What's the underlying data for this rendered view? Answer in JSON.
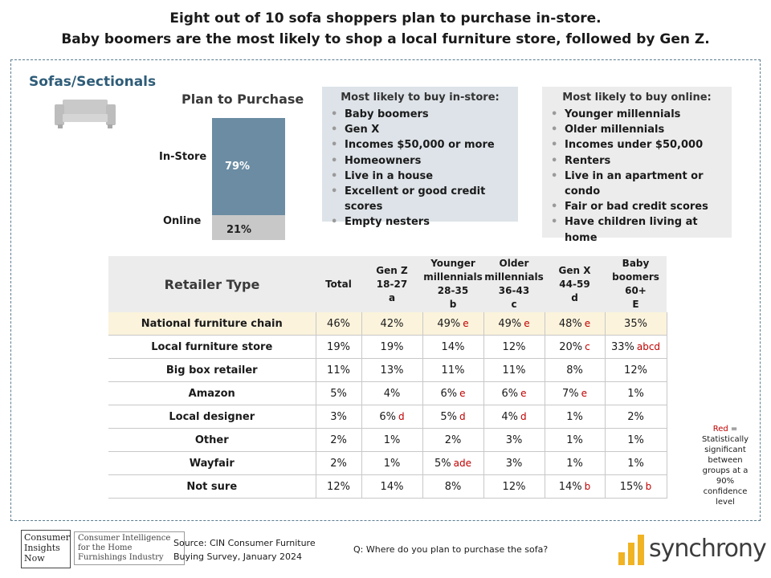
{
  "title": {
    "line1": "Eight out of 10 sofa shoppers plan to purchase in-store.",
    "line2": "Baby boomers are the most likely to shop a local furniture store, followed by Gen Z."
  },
  "section_title": "Sofas/Sectionals",
  "icons": {
    "sofa": "sofa-icon",
    "logo_mark": "synchrony-logo-icon"
  },
  "colors": {
    "instore_bar": "#6b8ca3",
    "online_bar": "#c8c8c8",
    "sig_red": "#c00000",
    "highlight": "#fbf3dc",
    "section": "#2e5c78"
  },
  "chart_data": [
    {
      "type": "bar",
      "title": "Plan to Purchase",
      "stacked": true,
      "categories": [
        "In-Store",
        "Online"
      ],
      "values": [
        79,
        21
      ],
      "labels": [
        "79%",
        "21%"
      ],
      "ylim": [
        0,
        100
      ]
    },
    {
      "type": "table",
      "title": "Retailer Type",
      "columns": [
        {
          "label": "Total",
          "lines": [
            "Total"
          ]
        },
        {
          "label": "Gen Z 18-27 a",
          "lines": [
            "Gen Z",
            "18-27",
            "a"
          ]
        },
        {
          "label": "Younger millennials 28-35 b",
          "lines": [
            "Younger",
            "millennials",
            "28-35",
            "b"
          ]
        },
        {
          "label": "Older millennials 36-43 c",
          "lines": [
            "Older",
            "millennials",
            "36-43",
            "c"
          ]
        },
        {
          "label": "Gen X 44-59 d",
          "lines": [
            "Gen X",
            "44-59",
            "d"
          ]
        },
        {
          "label": "Baby boomers 60+ E",
          "lines": [
            "Baby",
            "boomers",
            "60+",
            "E"
          ]
        }
      ],
      "rows": [
        {
          "label": "National furniture chain",
          "highlight": true,
          "cells": [
            [
              "46%",
              ""
            ],
            [
              "42%",
              ""
            ],
            [
              "49%",
              "e"
            ],
            [
              "49%",
              "e"
            ],
            [
              "48%",
              "e"
            ],
            [
              "35%",
              ""
            ]
          ]
        },
        {
          "label": "Local furniture store",
          "highlight": false,
          "cells": [
            [
              "19%",
              ""
            ],
            [
              "19%",
              ""
            ],
            [
              "14%",
              ""
            ],
            [
              "12%",
              ""
            ],
            [
              "20%",
              "c"
            ],
            [
              "33%",
              "abcd"
            ]
          ]
        },
        {
          "label": "Big box retailer",
          "highlight": false,
          "cells": [
            [
              "11%",
              ""
            ],
            [
              "13%",
              ""
            ],
            [
              "11%",
              ""
            ],
            [
              "11%",
              ""
            ],
            [
              "8%",
              ""
            ],
            [
              "12%",
              ""
            ]
          ]
        },
        {
          "label": "Amazon",
          "highlight": false,
          "cells": [
            [
              "5%",
              ""
            ],
            [
              "4%",
              ""
            ],
            [
              "6%",
              "e"
            ],
            [
              "6%",
              "e"
            ],
            [
              "7%",
              "e"
            ],
            [
              "1%",
              ""
            ]
          ]
        },
        {
          "label": "Local designer",
          "highlight": false,
          "cells": [
            [
              "3%",
              ""
            ],
            [
              "6%",
              "d"
            ],
            [
              "5%",
              "d"
            ],
            [
              "4%",
              "d"
            ],
            [
              "1%",
              ""
            ],
            [
              "2%",
              ""
            ]
          ]
        },
        {
          "label": "Other",
          "highlight": false,
          "cells": [
            [
              "2%",
              ""
            ],
            [
              "1%",
              ""
            ],
            [
              "2%",
              ""
            ],
            [
              "3%",
              ""
            ],
            [
              "1%",
              ""
            ],
            [
              "1%",
              ""
            ]
          ]
        },
        {
          "label": "Wayfair",
          "highlight": false,
          "cells": [
            [
              "2%",
              ""
            ],
            [
              "1%",
              ""
            ],
            [
              "5%",
              "ade"
            ],
            [
              "3%",
              ""
            ],
            [
              "1%",
              ""
            ],
            [
              "1%",
              ""
            ]
          ]
        },
        {
          "label": "Not sure",
          "highlight": false,
          "cells": [
            [
              "12%",
              ""
            ],
            [
              "14%",
              ""
            ],
            [
              "8%",
              ""
            ],
            [
              "12%",
              ""
            ],
            [
              "14%",
              "b"
            ],
            [
              "15%",
              "b"
            ]
          ]
        }
      ]
    }
  ],
  "instore_box": {
    "title": "Most likely to buy in-store:",
    "items": [
      "Baby boomers",
      "Gen X",
      "Incomes $50,000 or more",
      "Homeowners",
      "Live in a house",
      "Excellent or good credit scores",
      "Empty nesters"
    ]
  },
  "online_box": {
    "title": "Most likely to buy online:",
    "items": [
      "Younger millennials",
      "Older millennials",
      "Incomes under $50,000",
      "Renters",
      "Live in an apartment or condo",
      "Fair or bad credit scores",
      "Have children living at home"
    ]
  },
  "note": {
    "red_label": "Red",
    "equals": " =",
    "text": "Statistically significant between groups at a 90% confidence level"
  },
  "footer": {
    "source_line1": "Source: CIN Consumer Furniture",
    "source_line2": "Buying Survey, January 2024",
    "question": "Q: Where do you plan to purchase the sofa?",
    "cin_logo_line1": "Consumer",
    "cin_logo_line2": "Insights",
    "cin_logo_line3": "Now",
    "cin_tagline1": "Consumer Intelligence",
    "cin_tagline2": "for the Home",
    "cin_tagline3": "Furnishings Industry",
    "synchrony_logo": "synchrony"
  }
}
